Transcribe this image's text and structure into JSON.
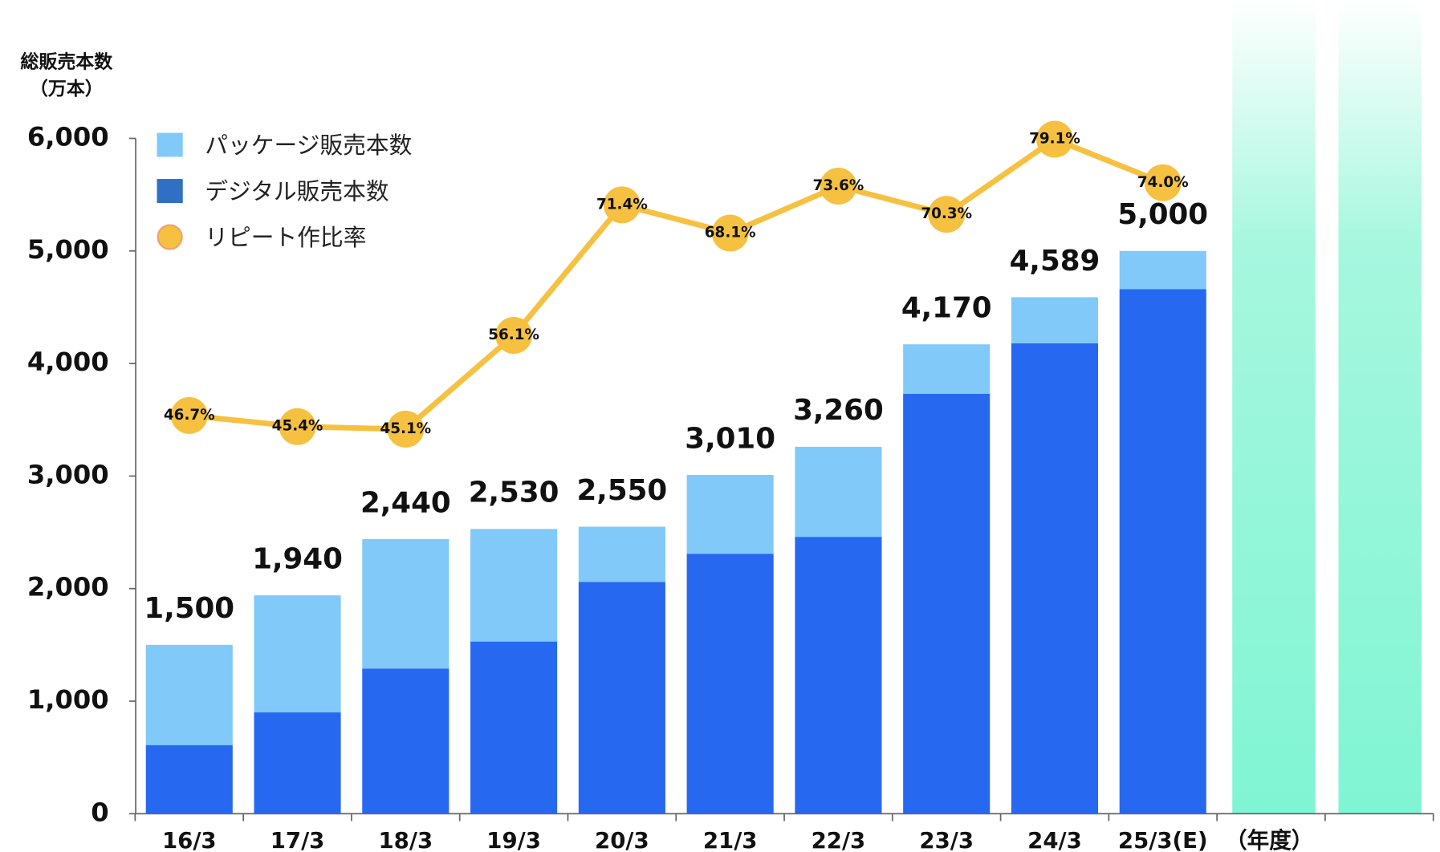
{
  "chart_data": {
    "type": "stacked_bar_line",
    "ylabel": "総販売本数",
    "ylabel_unit": "（万本）",
    "xlabel": "（年度）",
    "categories": [
      "16/3",
      "17/3",
      "18/3",
      "19/3",
      "20/3",
      "21/3",
      "22/3",
      "23/3",
      "24/3",
      "25/3(E)"
    ],
    "ylim": [
      0,
      6000
    ],
    "yticks": [
      0,
      {
        "value": 1000,
        "label": "1,000"
      },
      {
        "value": 2000,
        "label": "2,000"
      },
      {
        "value": 3000,
        "label": "3,000"
      },
      {
        "value": 4000,
        "label": "4,000"
      },
      {
        "value": 5000,
        "label": "5,000"
      },
      {
        "value": 6000,
        "label": "6,000"
      }
    ],
    "y2lim": [
      0,
      79.2
    ],
    "legend": "upper left",
    "series": [
      {
        "name": "パッケージ販売本数",
        "color": "#80c9f9",
        "values": [
          890,
          1040,
          1150,
          1000,
          490,
          700,
          800,
          440,
          409,
          340
        ]
      },
      {
        "name": "デジタル販売本数",
        "color": "#2768f1",
        "values": [
          610,
          900,
          1290,
          1530,
          2060,
          2310,
          2460,
          3730,
          4180,
          4660
        ]
      },
      {
        "name": "リピート作比率",
        "color": "#f6c141",
        "axis": "y2",
        "values": [
          46.7,
          45.4,
          45.1,
          56.1,
          71.4,
          68.1,
          73.6,
          70.3,
          79.1,
          74.0
        ],
        "value_labels": [
          "46.7%",
          "45.4%",
          "45.1%",
          "56.1%",
          "71.4%",
          "68.1%",
          "73.6%",
          "70.3%",
          "79.1%",
          "74.0%"
        ]
      }
    ],
    "totals": {
      "values": [
        1500,
        1940,
        2440,
        2530,
        2550,
        3010,
        3260,
        4170,
        4589,
        5000
      ],
      "value_labels": [
        "1,500",
        "1,940",
        "2,440",
        "2,530",
        "2,550",
        "3,010",
        "3,260",
        "4,170",
        "4,589",
        "5,000"
      ]
    }
  }
}
